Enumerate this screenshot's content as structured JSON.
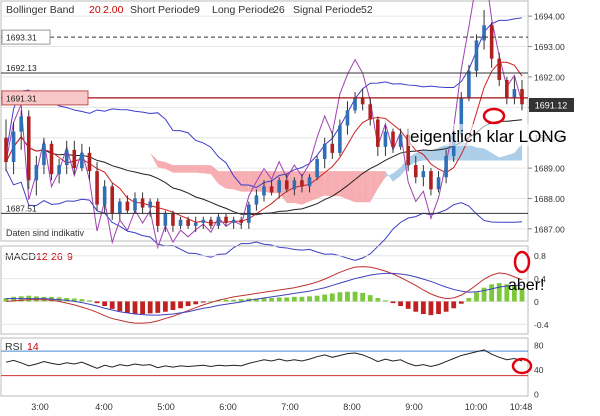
{
  "chart_data": [
    {
      "type": "candlestick",
      "panel": "price",
      "header": {
        "bollinger_label": "Bollinger Band",
        "bollinger_p1": "20",
        "bollinger_p2": "2.00",
        "short_label": "Short Periode",
        "short_value": "9",
        "long_label": "Long Periode",
        "long_value": "26",
        "signal_label": "Signal Periode",
        "signal_value": "52"
      },
      "ylim": [
        1686.7,
        1694.4
      ],
      "y_ticks": [
        1687.0,
        1688.0,
        1689.0,
        1690.0,
        1691.0,
        1692.0,
        1693.0,
        1694.0
      ],
      "y_tick_labels": [
        "1687.00",
        "1688.00",
        "1689.00",
        "1690.00",
        "1691.00",
        "1692.00",
        "1693.00",
        "1694.00"
      ],
      "x_times": [
        "3:00",
        "4:00",
        "5:00",
        "6:00",
        "7:00",
        "8:00",
        "9:00",
        "10:00",
        "10:48"
      ],
      "last_price_label": "1691.12",
      "level_lines": [
        {
          "value": 1693.31,
          "label": "1693.31",
          "style": "dashed"
        },
        {
          "value": 1692.13,
          "label": "1692.13",
          "style": "solid"
        },
        {
          "value": 1691.31,
          "label": "1691.31",
          "style": "solid-red"
        },
        {
          "value": 1687.51,
          "label": "1687.51",
          "style": "solid"
        }
      ],
      "note": "Daten sind indikativ",
      "annotation": "eigentlich klar LONG",
      "candles": [
        {
          "o": 1690.0,
          "h": 1690.6,
          "l": 1688.9,
          "c": 1689.2
        },
        {
          "o": 1689.2,
          "h": 1690.5,
          "l": 1688.8,
          "c": 1690.2
        },
        {
          "o": 1690.2,
          "h": 1690.9,
          "l": 1689.6,
          "c": 1690.7
        },
        {
          "o": 1690.7,
          "h": 1690.9,
          "l": 1688.3,
          "c": 1688.6
        },
        {
          "o": 1688.6,
          "h": 1689.4,
          "l": 1688.1,
          "c": 1689.1
        },
        {
          "o": 1689.1,
          "h": 1690.0,
          "l": 1688.8,
          "c": 1689.8
        },
        {
          "o": 1689.8,
          "h": 1689.9,
          "l": 1688.6,
          "c": 1688.8
        },
        {
          "o": 1688.8,
          "h": 1689.3,
          "l": 1688.5,
          "c": 1689.1
        },
        {
          "o": 1689.1,
          "h": 1689.9,
          "l": 1688.8,
          "c": 1689.6
        },
        {
          "o": 1689.6,
          "h": 1689.9,
          "l": 1688.8,
          "c": 1689.0
        },
        {
          "o": 1689.0,
          "h": 1689.8,
          "l": 1688.9,
          "c": 1689.5
        },
        {
          "o": 1689.5,
          "h": 1689.7,
          "l": 1688.6,
          "c": 1688.9
        },
        {
          "o": 1688.9,
          "h": 1689.2,
          "l": 1687.6,
          "c": 1687.8
        },
        {
          "o": 1687.8,
          "h": 1688.6,
          "l": 1687.5,
          "c": 1688.4
        },
        {
          "o": 1688.4,
          "h": 1688.5,
          "l": 1687.3,
          "c": 1687.5
        },
        {
          "o": 1687.5,
          "h": 1688.0,
          "l": 1687.3,
          "c": 1687.9
        },
        {
          "o": 1687.9,
          "h": 1688.1,
          "l": 1687.5,
          "c": 1687.6
        },
        {
          "o": 1687.6,
          "h": 1688.2,
          "l": 1687.5,
          "c": 1688.0
        },
        {
          "o": 1688.0,
          "h": 1688.2,
          "l": 1687.5,
          "c": 1687.7
        },
        {
          "o": 1687.7,
          "h": 1688.0,
          "l": 1687.4,
          "c": 1687.9
        },
        {
          "o": 1687.9,
          "h": 1688.0,
          "l": 1686.9,
          "c": 1687.1
        },
        {
          "o": 1687.1,
          "h": 1687.6,
          "l": 1686.9,
          "c": 1687.5
        },
        {
          "o": 1687.5,
          "h": 1687.6,
          "l": 1686.9,
          "c": 1687.1
        },
        {
          "o": 1687.1,
          "h": 1687.4,
          "l": 1687.0,
          "c": 1687.3
        },
        {
          "o": 1687.3,
          "h": 1687.4,
          "l": 1687.0,
          "c": 1687.1
        },
        {
          "o": 1687.1,
          "h": 1687.4,
          "l": 1686.9,
          "c": 1687.2
        },
        {
          "o": 1687.2,
          "h": 1687.4,
          "l": 1687.0,
          "c": 1687.3
        },
        {
          "o": 1687.3,
          "h": 1687.4,
          "l": 1687.0,
          "c": 1687.1
        },
        {
          "o": 1687.1,
          "h": 1687.5,
          "l": 1687.0,
          "c": 1687.4
        },
        {
          "o": 1687.4,
          "h": 1687.5,
          "l": 1687.1,
          "c": 1687.2
        },
        {
          "o": 1687.2,
          "h": 1687.4,
          "l": 1687.0,
          "c": 1687.3
        },
        {
          "o": 1687.3,
          "h": 1687.4,
          "l": 1687.0,
          "c": 1687.2
        },
        {
          "o": 1687.2,
          "h": 1687.9,
          "l": 1687.0,
          "c": 1687.8
        },
        {
          "o": 1687.8,
          "h": 1688.3,
          "l": 1687.6,
          "c": 1688.1
        },
        {
          "o": 1688.1,
          "h": 1688.6,
          "l": 1687.9,
          "c": 1688.4
        },
        {
          "o": 1688.4,
          "h": 1688.6,
          "l": 1688.1,
          "c": 1688.2
        },
        {
          "o": 1688.2,
          "h": 1688.7,
          "l": 1688.0,
          "c": 1688.6
        },
        {
          "o": 1688.6,
          "h": 1688.8,
          "l": 1688.2,
          "c": 1688.3
        },
        {
          "o": 1688.3,
          "h": 1688.7,
          "l": 1688.1,
          "c": 1688.6
        },
        {
          "o": 1688.6,
          "h": 1688.8,
          "l": 1688.2,
          "c": 1688.4
        },
        {
          "o": 1688.4,
          "h": 1688.8,
          "l": 1688.2,
          "c": 1688.7
        },
        {
          "o": 1688.7,
          "h": 1689.4,
          "l": 1688.6,
          "c": 1689.3
        },
        {
          "o": 1689.3,
          "h": 1690.0,
          "l": 1689.0,
          "c": 1689.8
        },
        {
          "o": 1689.8,
          "h": 1690.2,
          "l": 1689.3,
          "c": 1689.5
        },
        {
          "o": 1689.5,
          "h": 1690.6,
          "l": 1689.4,
          "c": 1690.4
        },
        {
          "o": 1690.4,
          "h": 1691.2,
          "l": 1690.1,
          "c": 1690.9
        },
        {
          "o": 1690.9,
          "h": 1691.5,
          "l": 1690.8,
          "c": 1691.3
        },
        {
          "o": 1691.3,
          "h": 1691.6,
          "l": 1690.9,
          "c": 1691.1
        },
        {
          "o": 1691.1,
          "h": 1691.3,
          "l": 1690.4,
          "c": 1690.6
        },
        {
          "o": 1690.6,
          "h": 1690.7,
          "l": 1689.4,
          "c": 1689.7
        },
        {
          "o": 1689.7,
          "h": 1690.4,
          "l": 1689.4,
          "c": 1690.2
        },
        {
          "o": 1690.2,
          "h": 1690.3,
          "l": 1689.5,
          "c": 1689.7
        },
        {
          "o": 1689.7,
          "h": 1690.3,
          "l": 1689.6,
          "c": 1690.1
        },
        {
          "o": 1690.1,
          "h": 1690.3,
          "l": 1688.9,
          "c": 1689.1
        },
        {
          "o": 1689.1,
          "h": 1689.4,
          "l": 1688.5,
          "c": 1688.7
        },
        {
          "o": 1688.7,
          "h": 1689.1,
          "l": 1688.4,
          "c": 1688.9
        },
        {
          "o": 1688.9,
          "h": 1689.0,
          "l": 1688.1,
          "c": 1688.3
        },
        {
          "o": 1688.3,
          "h": 1688.9,
          "l": 1688.2,
          "c": 1688.7
        },
        {
          "o": 1688.7,
          "h": 1689.6,
          "l": 1688.5,
          "c": 1689.4
        },
        {
          "o": 1689.4,
          "h": 1690.4,
          "l": 1689.2,
          "c": 1690.1
        },
        {
          "o": 1690.1,
          "h": 1691.5,
          "l": 1690.0,
          "c": 1691.3
        },
        {
          "o": 1691.3,
          "h": 1692.4,
          "l": 1691.2,
          "c": 1692.2
        },
        {
          "o": 1692.2,
          "h": 1693.4,
          "l": 1692.0,
          "c": 1693.2
        },
        {
          "o": 1693.2,
          "h": 1694.2,
          "l": 1692.9,
          "c": 1693.7
        },
        {
          "o": 1693.7,
          "h": 1693.8,
          "l": 1692.3,
          "c": 1692.6
        },
        {
          "o": 1692.6,
          "h": 1692.8,
          "l": 1691.7,
          "c": 1691.9
        },
        {
          "o": 1691.9,
          "h": 1692.0,
          "l": 1691.1,
          "c": 1691.3
        },
        {
          "o": 1691.3,
          "h": 1692.0,
          "l": 1691.1,
          "c": 1691.6
        },
        {
          "o": 1691.6,
          "h": 1691.9,
          "l": 1690.9,
          "c": 1691.1
        }
      ]
    },
    {
      "type": "bar",
      "panel": "macd",
      "label": "MACD",
      "p1": "12",
      "p2": "26",
      "p3": "9",
      "annotation": "aber!",
      "ylim": [
        -0.5,
        0.9
      ],
      "y_ticks": [
        -0.4,
        0.0,
        0.4,
        0.8
      ],
      "y_tick_labels": [
        "-0.4",
        "0",
        "0.4",
        "0.8"
      ],
      "histogram": [
        0.06,
        0.08,
        0.09,
        0.1,
        0.09,
        0.08,
        0.08,
        0.07,
        0.06,
        0.05,
        0.04,
        0.02,
        -0.03,
        -0.08,
        -0.13,
        -0.17,
        -0.2,
        -0.22,
        -0.22,
        -0.21,
        -0.2,
        -0.18,
        -0.15,
        -0.12,
        -0.08,
        -0.05,
        -0.02,
        0.0,
        0.02,
        0.03,
        0.03,
        0.04,
        0.05,
        0.05,
        0.06,
        0.06,
        0.07,
        0.07,
        0.08,
        0.08,
        0.09,
        0.1,
        0.12,
        0.14,
        0.16,
        0.17,
        0.17,
        0.15,
        0.11,
        0.06,
        0.02,
        -0.03,
        -0.08,
        -0.13,
        -0.18,
        -0.22,
        -0.24,
        -0.22,
        -0.18,
        -0.12,
        -0.04,
        0.06,
        0.16,
        0.24,
        0.3,
        0.32,
        0.3,
        0.27,
        0.23
      ],
      "series": [
        {
          "values": [
            0.0,
            0.01,
            0.02,
            0.03,
            0.03,
            0.03,
            0.02,
            0.0,
            -0.03,
            -0.06,
            -0.1,
            -0.14,
            -0.19,
            -0.25,
            -0.3,
            -0.33,
            -0.36,
            -0.38,
            -0.38,
            -0.37,
            -0.34,
            -0.3,
            -0.26,
            -0.21,
            -0.16,
            -0.11,
            -0.06,
            -0.02,
            0.02,
            0.05,
            0.08,
            0.1,
            0.12,
            0.14,
            0.16,
            0.18,
            0.2,
            0.22,
            0.24,
            0.27,
            0.3,
            0.34,
            0.39,
            0.45,
            0.51,
            0.56,
            0.6,
            0.61,
            0.6,
            0.57,
            0.53,
            0.48,
            0.42,
            0.35,
            0.28,
            0.2,
            0.13,
            0.08,
            0.05,
            0.06,
            0.11,
            0.19,
            0.29,
            0.39,
            0.46,
            0.5,
            0.48,
            0.43,
            0.38
          ]
        },
        {
          "values": [
            0.05,
            0.05,
            0.05,
            0.05,
            0.05,
            0.05,
            0.04,
            0.03,
            0.02,
            0.0,
            -0.02,
            -0.05,
            -0.08,
            -0.12,
            -0.15,
            -0.18,
            -0.2,
            -0.22,
            -0.23,
            -0.24,
            -0.24,
            -0.23,
            -0.22,
            -0.2,
            -0.18,
            -0.15,
            -0.12,
            -0.1,
            -0.07,
            -0.05,
            -0.03,
            -0.01,
            0.02,
            0.04,
            0.06,
            0.08,
            0.1,
            0.12,
            0.14,
            0.16,
            0.18,
            0.21,
            0.24,
            0.28,
            0.32,
            0.36,
            0.4,
            0.43,
            0.46,
            0.48,
            0.49,
            0.49,
            0.48,
            0.46,
            0.43,
            0.39,
            0.35,
            0.3,
            0.25,
            0.21,
            0.18,
            0.16,
            0.17,
            0.19,
            0.22,
            0.25,
            0.27,
            0.28,
            0.28
          ]
        }
      ]
    },
    {
      "type": "line",
      "panel": "rsi",
      "label": "RSI",
      "p1": "14",
      "ylim": [
        0,
        85
      ],
      "y_ticks": [
        0,
        40,
        80
      ],
      "y_tick_labels": [
        "0",
        "40",
        "80"
      ],
      "bands": [
        70,
        30
      ],
      "series": [
        {
          "values": [
            52,
            55,
            51,
            46,
            49,
            53,
            50,
            48,
            51,
            49,
            52,
            47,
            42,
            47,
            44,
            48,
            46,
            49,
            47,
            48,
            43,
            46,
            44,
            46,
            45,
            46,
            47,
            45,
            47,
            46,
            47,
            46,
            50,
            53,
            56,
            54,
            57,
            54,
            56,
            54,
            57,
            61,
            64,
            60,
            63,
            66,
            67,
            64,
            59,
            53,
            57,
            54,
            56,
            50,
            46,
            48,
            45,
            48,
            53,
            58,
            63,
            66,
            69,
            72,
            65,
            60,
            56,
            58,
            54
          ]
        }
      ]
    }
  ]
}
